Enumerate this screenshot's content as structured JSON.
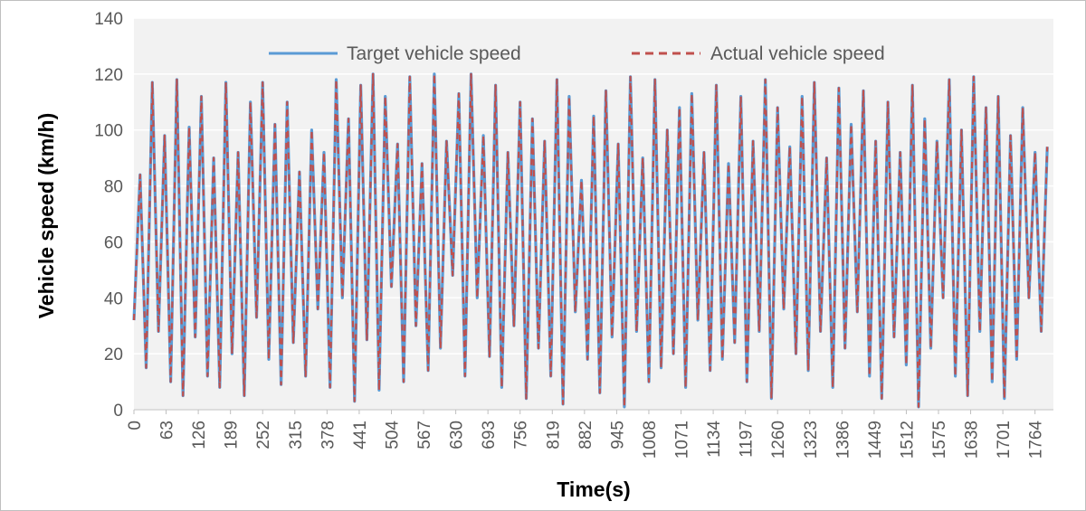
{
  "chart_data": {
    "type": "line",
    "title": "",
    "xlabel": "Time(s)",
    "ylabel": "Vehicle speed (km/h)",
    "ylim": [
      0,
      140
    ],
    "yticks": [
      0,
      20,
      40,
      60,
      80,
      100,
      120,
      140
    ],
    "xlim": [
      0,
      1800
    ],
    "xticks": [
      0,
      63,
      126,
      189,
      252,
      315,
      378,
      441,
      504,
      567,
      630,
      693,
      756,
      819,
      882,
      945,
      1008,
      1071,
      1134,
      1197,
      1260,
      1323,
      1386,
      1449,
      1512,
      1575,
      1638,
      1701,
      1764
    ],
    "grid": true,
    "legend_position": "top",
    "colors": {
      "target": "#5b9bd5",
      "actual": "#c0504d",
      "plot_bg": "#f2f2f2",
      "grid": "#ffffff"
    },
    "series": [
      {
        "name": "Target vehicle speed",
        "x": [
          0,
          12,
          24,
          36,
          48,
          60,
          72,
          84,
          96,
          108,
          120,
          132,
          144,
          156,
          168,
          180,
          192,
          204,
          216,
          228,
          240,
          252,
          264,
          276,
          288,
          300,
          312,
          324,
          336,
          348,
          360,
          372,
          384,
          396,
          408,
          420,
          432,
          444,
          456,
          468,
          480,
          492,
          504,
          516,
          528,
          540,
          552,
          564,
          576,
          588,
          600,
          612,
          624,
          636,
          648,
          660,
          672,
          684,
          696,
          708,
          720,
          732,
          744,
          756,
          768,
          780,
          792,
          804,
          816,
          828,
          840,
          852,
          864,
          876,
          888,
          900,
          912,
          924,
          936,
          948,
          960,
          972,
          984,
          996,
          1008,
          1020,
          1032,
          1044,
          1056,
          1068,
          1080,
          1092,
          1104,
          1116,
          1128,
          1140,
          1152,
          1164,
          1176,
          1188,
          1200,
          1212,
          1224,
          1236,
          1248,
          1260,
          1272,
          1284,
          1296,
          1308,
          1320,
          1332,
          1344,
          1356,
          1368,
          1380,
          1392,
          1404,
          1416,
          1428,
          1440,
          1452,
          1464,
          1476,
          1488,
          1500,
          1512,
          1524,
          1536,
          1548,
          1560,
          1572,
          1584,
          1596,
          1608,
          1620,
          1632,
          1644,
          1656,
          1668,
          1680,
          1692,
          1704,
          1716,
          1728,
          1740,
          1752,
          1764,
          1776,
          1788
        ],
        "values": [
          32,
          84,
          15,
          117,
          28,
          98,
          10,
          118,
          5,
          101,
          26,
          112,
          12,
          90,
          8,
          117,
          20,
          92,
          5,
          110,
          33,
          117,
          18,
          102,
          9,
          110,
          24,
          85,
          12,
          100,
          36,
          92,
          8,
          118,
          40,
          104,
          3,
          116,
          25,
          120,
          7,
          112,
          44,
          95,
          10,
          119,
          30,
          88,
          14,
          120,
          22,
          96,
          48,
          113,
          12,
          120,
          40,
          98,
          19,
          116,
          8,
          92,
          30,
          110,
          4,
          104,
          22,
          96,
          12,
          118,
          2,
          112,
          35,
          82,
          18,
          105,
          6,
          114,
          26,
          95,
          1,
          119,
          28,
          90,
          10,
          118,
          15,
          100,
          20,
          108,
          8,
          113,
          32,
          92,
          14,
          116,
          18,
          88,
          24,
          112,
          10,
          96,
          28,
          118,
          4,
          108,
          36,
          94,
          20,
          112,
          14,
          117,
          28,
          90,
          8,
          115,
          22,
          102,
          35,
          114,
          12,
          96,
          4,
          110,
          26,
          92,
          16,
          116,
          1,
          104,
          22,
          96,
          40,
          118,
          12,
          100,
          5,
          119,
          28,
          108,
          10,
          112,
          4,
          98,
          18,
          108,
          40,
          92,
          28,
          94
        ]
      },
      {
        "name": "Actual vehicle speed",
        "x": [
          0,
          12,
          24,
          36,
          48,
          60,
          72,
          84,
          96,
          108,
          120,
          132,
          144,
          156,
          168,
          180,
          192,
          204,
          216,
          228,
          240,
          252,
          264,
          276,
          288,
          300,
          312,
          324,
          336,
          348,
          360,
          372,
          384,
          396,
          408,
          420,
          432,
          444,
          456,
          468,
          480,
          492,
          504,
          516,
          528,
          540,
          552,
          564,
          576,
          588,
          600,
          612,
          624,
          636,
          648,
          660,
          672,
          684,
          696,
          708,
          720,
          732,
          744,
          756,
          768,
          780,
          792,
          804,
          816,
          828,
          840,
          852,
          864,
          876,
          888,
          900,
          912,
          924,
          936,
          948,
          960,
          972,
          984,
          996,
          1008,
          1020,
          1032,
          1044,
          1056,
          1068,
          1080,
          1092,
          1104,
          1116,
          1128,
          1140,
          1152,
          1164,
          1176,
          1188,
          1200,
          1212,
          1224,
          1236,
          1248,
          1260,
          1272,
          1284,
          1296,
          1308,
          1320,
          1332,
          1344,
          1356,
          1368,
          1380,
          1392,
          1404,
          1416,
          1428,
          1440,
          1452,
          1464,
          1476,
          1488,
          1500,
          1512,
          1524,
          1536,
          1548,
          1560,
          1572,
          1584,
          1596,
          1608,
          1620,
          1632,
          1644,
          1656,
          1668,
          1680,
          1692,
          1704,
          1716,
          1728,
          1740,
          1752,
          1764,
          1776,
          1788
        ],
        "values": [
          32,
          84,
          15,
          117,
          28,
          98,
          10,
          118,
          5,
          101,
          26,
          112,
          12,
          90,
          8,
          117,
          20,
          92,
          5,
          110,
          33,
          117,
          18,
          102,
          9,
          110,
          24,
          85,
          12,
          100,
          36,
          92,
          8,
          118,
          40,
          104,
          3,
          116,
          25,
          120,
          7,
          112,
          44,
          95,
          10,
          119,
          30,
          88,
          14,
          120,
          22,
          96,
          48,
          113,
          12,
          120,
          40,
          98,
          19,
          116,
          8,
          92,
          30,
          110,
          4,
          104,
          22,
          96,
          12,
          118,
          2,
          112,
          35,
          82,
          18,
          105,
          6,
          114,
          26,
          95,
          1,
          119,
          28,
          90,
          10,
          118,
          15,
          100,
          20,
          108,
          8,
          113,
          32,
          92,
          14,
          116,
          18,
          88,
          24,
          112,
          10,
          96,
          28,
          118,
          4,
          108,
          36,
          94,
          20,
          112,
          14,
          117,
          28,
          90,
          8,
          115,
          22,
          102,
          35,
          114,
          12,
          96,
          4,
          110,
          26,
          92,
          16,
          116,
          1,
          104,
          22,
          96,
          40,
          118,
          12,
          100,
          5,
          119,
          28,
          108,
          10,
          112,
          4,
          98,
          18,
          108,
          40,
          92,
          28,
          94
        ]
      }
    ]
  }
}
